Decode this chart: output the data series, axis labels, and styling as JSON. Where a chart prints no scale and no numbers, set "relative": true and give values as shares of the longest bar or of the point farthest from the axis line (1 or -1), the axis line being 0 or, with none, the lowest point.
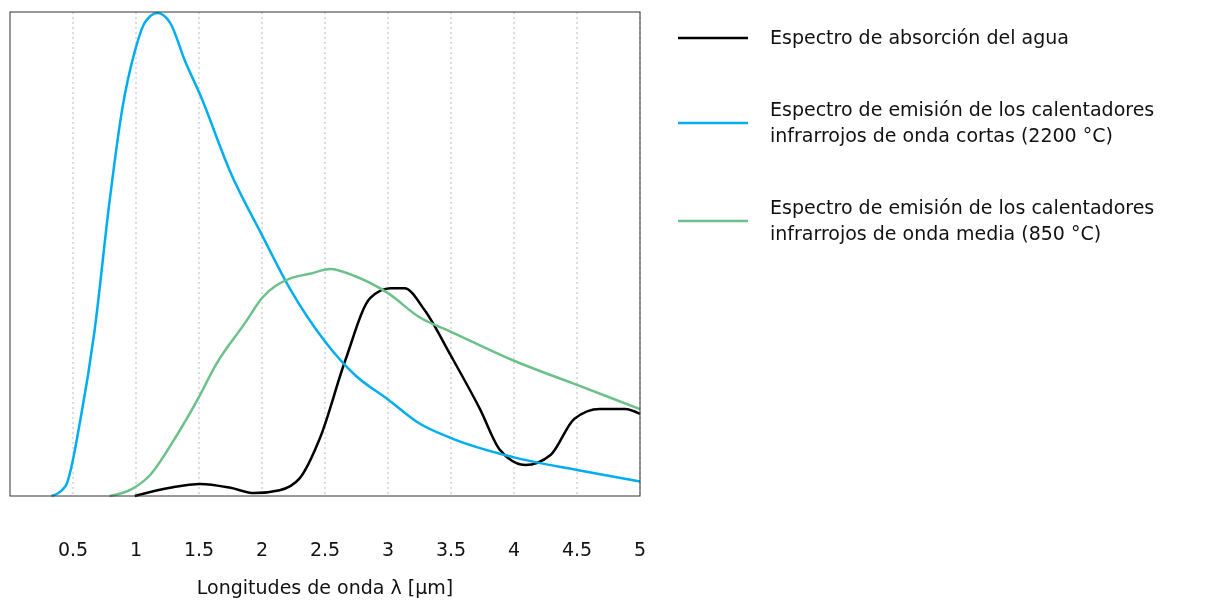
{
  "chart_data": {
    "type": "line",
    "relative": true,
    "xlabel": "Longitudes de onda λ [µm]",
    "xlim": [
      0,
      5
    ],
    "xticks": [
      0.5,
      1,
      1.5,
      2,
      2.5,
      3,
      3.5,
      4,
      4.5,
      5
    ],
    "grid": "x",
    "legend": "right",
    "line_style": "solid",
    "marker": "none",
    "series": [
      {
        "name": "Espectro de absorción del agua",
        "color": "#000000",
        "x": [
          0.99,
          1.27,
          1.51,
          1.75,
          1.94,
          2.14,
          2.3,
          2.46,
          2.66,
          2.86,
          3.02,
          3.13,
          3.29,
          3.5,
          3.73,
          3.89,
          4.09,
          4.29,
          4.48,
          4.68,
          4.88,
          5
        ],
        "values": [
          0,
          0.017,
          0.025,
          0.017,
          0.006,
          0.012,
          0.037,
          0.12,
          0.28,
          0.41,
          0.43,
          0.43,
          0.385,
          0.29,
          0.18,
          0.095,
          0.064,
          0.085,
          0.16,
          0.18,
          0.18,
          0.17
        ]
      },
      {
        "name": "Espectro de emisión de los calentadores infrarrojos de onda cortas (2200 °C)",
        "color": "#00aeef",
        "x": [
          0.33,
          0.44,
          0.56,
          0.67,
          0.79,
          0.89,
          0.99,
          1.07,
          1.17,
          1.27,
          1.39,
          1.51,
          1.75,
          2,
          2.22,
          2.5,
          2.74,
          3,
          3.25,
          3.5,
          4,
          4.5,
          5
        ],
        "values": [
          0,
          0.02,
          0.16,
          0.34,
          0.61,
          0.8,
          0.92,
          0.98,
          1,
          0.98,
          0.9,
          0.83,
          0.67,
          0.54,
          0.43,
          0.32,
          0.25,
          0.2,
          0.15,
          0.12,
          0.08,
          0.054,
          0.03
        ]
      },
      {
        "name": "Espectro de emisión de los calentadores infrarrojos de onda media (850 °C)",
        "color": "#6cc08a",
        "x": [
          0.79,
          0.95,
          1.11,
          1.31,
          1.51,
          1.63,
          1.87,
          2,
          2.22,
          2.38,
          2.54,
          2.74,
          3,
          3.25,
          3.5,
          4,
          4.5,
          5
        ],
        "values": [
          0,
          0.012,
          0.043,
          0.12,
          0.21,
          0.27,
          0.36,
          0.41,
          0.45,
          0.46,
          0.47,
          0.455,
          0.42,
          0.37,
          0.34,
          0.28,
          0.23,
          0.18
        ]
      }
    ]
  }
}
